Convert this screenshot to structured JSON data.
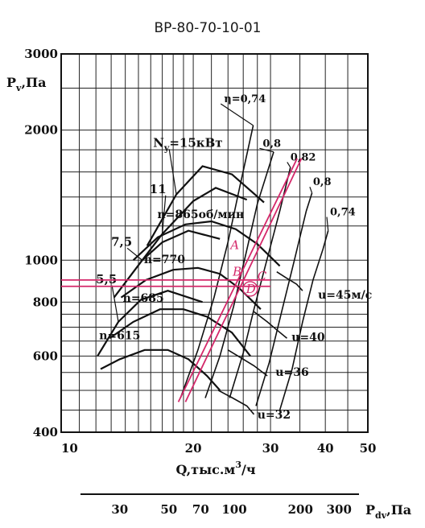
{
  "chart_data": {
    "type": "line",
    "title": "ВР-80-70-10-01",
    "ylabel_main": "P",
    "ylabel_sub": "v",
    "ylabel_unit": ",Па",
    "xlabel_main": "Q,тыс.м",
    "xlabel_sup": "3",
    "xlabel_unit": "/ч",
    "x2label_main": "P",
    "x2label_sub": "dv",
    "x2label_unit": ",Па",
    "scale": "log-log",
    "xlim": [
      10,
      50
    ],
    "ylim": [
      400,
      3000
    ],
    "y_ticks": [
      {
        "value": 400,
        "label": "400"
      },
      {
        "value": 600,
        "label": "600"
      },
      {
        "value": 800,
        "label": "800"
      },
      {
        "value": 1000,
        "label": "1000"
      },
      {
        "value": 2000,
        "label": "2000"
      },
      {
        "value": 3000,
        "label": "3000"
      }
    ],
    "x_ticks": [
      {
        "value": 10,
        "label": "10"
      },
      {
        "value": 20,
        "label": "20"
      },
      {
        "value": 30,
        "label": "30"
      },
      {
        "value": 40,
        "label": "40"
      },
      {
        "value": 50,
        "label": "50"
      }
    ],
    "x2_ticks": [
      {
        "value": 13.6,
        "label": "30"
      },
      {
        "value": 17.6,
        "label": "50"
      },
      {
        "value": 20.8,
        "label": "70"
      },
      {
        "value": 24.8,
        "label": "100"
      },
      {
        "value": 35.1,
        "label": "200"
      },
      {
        "value": 43.0,
        "label": "300"
      }
    ],
    "series": [
      {
        "name": "n=865об/мин",
        "label_at": [
          20.8,
          1220
        ],
        "points": [
          [
            14.6,
            1000
          ],
          [
            16.6,
            1130
          ],
          [
            19.2,
            1210
          ],
          [
            22.0,
            1230
          ],
          [
            25.0,
            1180
          ],
          [
            28.0,
            1090
          ],
          [
            31.5,
            970
          ]
        ]
      },
      {
        "name": "n=770",
        "label_at": [
          17.2,
          960
        ],
        "points": [
          [
            13.7,
            820
          ],
          [
            15.6,
            900
          ],
          [
            18.0,
            950
          ],
          [
            20.5,
            960
          ],
          [
            23.0,
            930
          ],
          [
            25.5,
            860
          ],
          [
            28.5,
            770
          ]
        ]
      },
      {
        "name": "n=685",
        "label_at": [
          15.4,
          780
        ],
        "points": [
          [
            12.9,
            660
          ],
          [
            14.6,
            720
          ],
          [
            16.8,
            770
          ],
          [
            19.0,
            770
          ],
          [
            21.5,
            740
          ],
          [
            24.5,
            680
          ],
          [
            27.0,
            600
          ]
        ]
      },
      {
        "name": "n=615",
        "label_at": [
          13.6,
          640
        ],
        "points": [
          [
            12.3,
            560
          ],
          [
            13.6,
            590
          ],
          [
            15.5,
            620
          ],
          [
            17.5,
            620
          ],
          [
            19.5,
            590
          ],
          [
            21.5,
            540
          ],
          [
            23.0,
            500
          ]
        ]
      }
    ],
    "power_curves": [
      {
        "label": "15кВт",
        "label_at": [
          16.2,
          1830
        ],
        "points": [
          [
            15.7,
            1080
          ],
          [
            18.3,
            1420
          ],
          [
            21.0,
            1650
          ],
          [
            24.5,
            1580
          ],
          [
            29.0,
            1360
          ]
        ]
      },
      {
        "label": "11",
        "label_at": [
          15.9,
          1430
        ],
        "points": [
          [
            15.3,
            1000
          ],
          [
            17.0,
            1150
          ],
          [
            20.0,
            1370
          ],
          [
            22.5,
            1470
          ],
          [
            26.5,
            1380
          ]
        ]
      },
      {
        "label": "7,5",
        "label_at": [
          13.0,
          1080
        ],
        "points": [
          [
            13.2,
            820
          ],
          [
            15.3,
            1000
          ],
          [
            17.0,
            1100
          ],
          [
            19.5,
            1170
          ],
          [
            23.0,
            1120
          ]
        ]
      },
      {
        "label": "5,5",
        "label_at": [
          12.0,
          885
        ],
        "points": [
          [
            12.1,
            600
          ],
          [
            13.5,
            720
          ],
          [
            15.2,
            810
          ],
          [
            17.5,
            850
          ],
          [
            21.0,
            800
          ]
        ]
      }
    ],
    "power_label_prefix": "N",
    "power_label_sub": "y",
    "power_label_eq": "=",
    "efficiency_lines": [
      {
        "label": "η=0,74",
        "label_at": [
          23.5,
          2320
        ],
        "points": [
          [
            18.7,
            480
          ],
          [
            20.5,
            620
          ],
          [
            22.3,
            820
          ],
          [
            24.0,
            1100
          ],
          [
            25.5,
            1470
          ],
          [
            27.4,
            2050
          ]
        ]
      },
      {
        "label": "0,8",
        "label_at": [
          28.8,
          1830
        ],
        "points": [
          [
            21.3,
            480
          ],
          [
            23.0,
            600
          ],
          [
            24.7,
            780
          ],
          [
            26.4,
            1040
          ],
          [
            28.0,
            1350
          ],
          [
            30.5,
            1780
          ]
        ]
      },
      {
        "label": "0,82",
        "label_at": [
          33.3,
          1700
        ],
        "points": [
          [
            24.2,
            480
          ],
          [
            26.0,
            610
          ],
          [
            27.5,
            770
          ],
          [
            29.5,
            1010
          ],
          [
            31.5,
            1300
          ],
          [
            33.3,
            1640
          ]
        ]
      },
      {
        "label": "0,8",
        "label_at": [
          37.5,
          1490
        ],
        "points": [
          [
            27.8,
            460
          ],
          [
            29.8,
            580
          ],
          [
            31.8,
            760
          ],
          [
            34.0,
            1000
          ],
          [
            36.2,
            1300
          ],
          [
            37.3,
            1430
          ]
        ]
      },
      {
        "label": "0,74",
        "label_at": [
          41.0,
          1270
        ],
        "points": [
          [
            31.5,
            450
          ],
          [
            33.6,
            560
          ],
          [
            35.5,
            720
          ],
          [
            37.5,
            900
          ],
          [
            39.5,
            1060
          ],
          [
            40.6,
            1170
          ]
        ]
      }
    ],
    "speed_lines": [
      {
        "label": "u=45м/с",
        "label_at": [
          38.5,
          815
        ],
        "points": [
          [
            31.0,
            940
          ],
          [
            32.6,
            910
          ],
          [
            34.4,
            880
          ],
          [
            35.5,
            850
          ]
        ]
      },
      {
        "label": "u=40",
        "label_at": [
          33.5,
          650
        ],
        "points": [
          [
            27.5,
            760
          ],
          [
            29.5,
            720
          ],
          [
            31.0,
            690
          ],
          [
            32.7,
            660
          ]
        ]
      },
      {
        "label": "u=36",
        "label_at": [
          30.8,
          540
        ],
        "points": [
          [
            24.0,
            620
          ],
          [
            26.0,
            590
          ],
          [
            27.5,
            570
          ],
          [
            29.5,
            540
          ]
        ]
      },
      {
        "label": "u=32",
        "label_at": [
          28.0,
          430
        ],
        "points": [
          [
            22.8,
            500
          ],
          [
            24.6,
            480
          ],
          [
            26.5,
            460
          ],
          [
            27.5,
            440
          ]
        ]
      }
    ],
    "annotations": {
      "color": "#d4286a",
      "lines": [
        [
          [
            18.5,
            470
          ],
          [
            34.5,
            1720
          ]
        ],
        [
          [
            19.2,
            470
          ],
          [
            35.3,
            1720
          ]
        ]
      ],
      "horizontals": [
        [
          10,
          30.0,
          900
        ],
        [
          10,
          30.0,
          870
        ]
      ],
      "labels": [
        {
          "text": "A",
          "at": [
            24.3,
            1060
          ]
        },
        {
          "text": "B",
          "at": [
            24.6,
            920
          ]
        },
        {
          "text": "C",
          "at": [
            28.0,
            900
          ]
        },
        {
          "text": "D",
          "at": [
            26.4,
            840
          ]
        }
      ]
    }
  }
}
